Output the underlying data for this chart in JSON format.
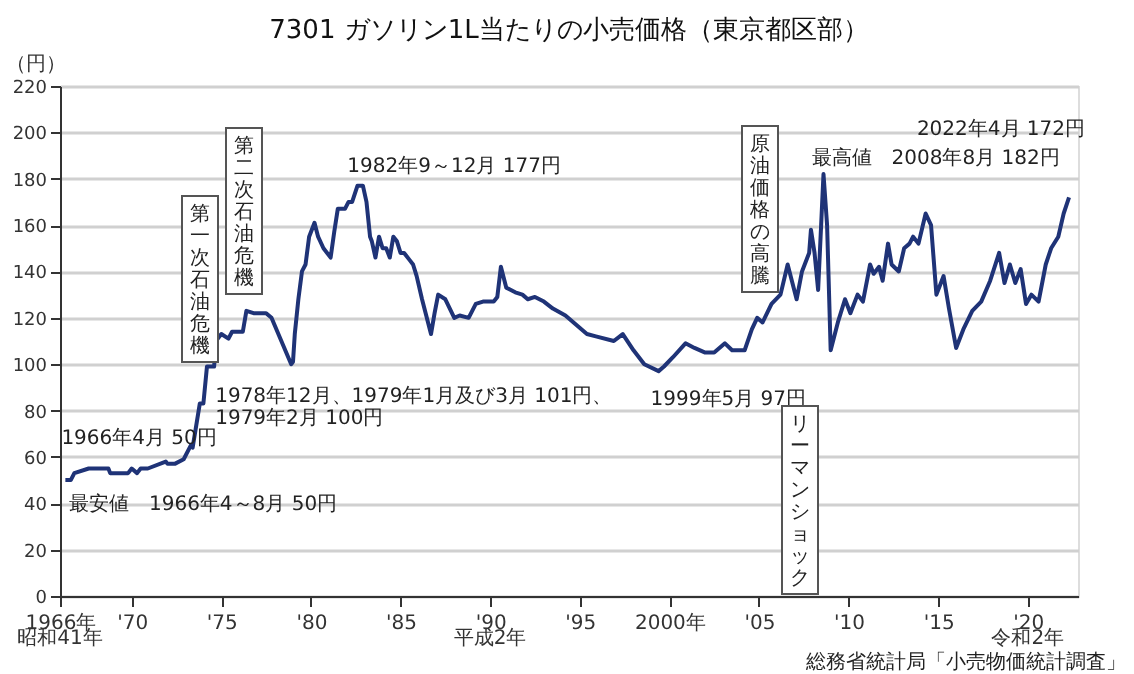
{
  "chart_data": {
    "type": "line",
    "title": "7301 ガソリン1L当たりの小売価格（東京都区部）",
    "ylabel": "（円）",
    "x": [
      1966.3,
      1966.6,
      1966.8,
      1967.6,
      1968.7,
      1968.8,
      1969.8,
      1970.0,
      1970.3,
      1970.5,
      1970.9,
      1971.9,
      1972.0,
      1972.4,
      1972.9,
      1973.3,
      1973.4,
      1973.8,
      1974.0,
      1974.2,
      1974.6,
      1974.7,
      1975.0,
      1975.4,
      1975.6,
      1976.2,
      1976.4,
      1976.8,
      1977.5,
      1977.8,
      1978.9,
      1979.0,
      1979.1,
      1979.3,
      1979.5,
      1979.7,
      1979.9,
      1980.2,
      1980.4,
      1980.7,
      1981.1,
      1981.3,
      1981.5,
      1981.9,
      1982.1,
      1982.3,
      1982.6,
      1982.9,
      1983.1,
      1983.3,
      1983.4,
      1983.6,
      1983.8,
      1984.0,
      1984.2,
      1984.4,
      1984.6,
      1984.8,
      1985.0,
      1985.2,
      1985.5,
      1985.7,
      1985.9,
      1986.2,
      1986.7,
      1986.9,
      1987.1,
      1987.5,
      1988.0,
      1988.3,
      1988.8,
      1989.2,
      1989.6,
      1990.2,
      1990.4,
      1990.6,
      1990.9,
      1991.4,
      1991.8,
      1992.1,
      1992.5,
      1993.0,
      1993.5,
      1994.2,
      1994.8,
      1995.4,
      1995.9,
      1996.9,
      1997.4,
      1998.0,
      1998.6,
      1999.4,
      1999.7,
      2000.2,
      2000.9,
      2001.4,
      2002.0,
      2002.5,
      2003.1,
      2003.5,
      2004.2,
      2004.6,
      2004.9,
      2005.2,
      2005.7,
      2006.2,
      2006.6,
      2007.1,
      2007.4,
      2007.8,
      2007.9,
      2008.1,
      2008.3,
      2008.6,
      2008.8,
      2009.0,
      2009.4,
      2009.8,
      2010.1,
      2010.5,
      2010.8,
      2011.2,
      2011.4,
      2011.7,
      2011.9,
      2012.2,
      2012.4,
      2012.8,
      2013.1,
      2013.4,
      2013.6,
      2013.9,
      2014.3,
      2014.6,
      2014.9,
      2015.3,
      2015.6,
      2016.0,
      2016.4,
      2016.9,
      2017.4,
      2017.9,
      2018.4,
      2018.7,
      2019.0,
      2019.3,
      2019.6,
      2019.9,
      2020.2,
      2020.6,
      2021.0,
      2021.3,
      2021.7,
      2022.0,
      2022.3
    ],
    "series": [
      {
        "color": "#1f3377",
        "values": [
          50,
          50,
          53,
          55,
          55,
          53,
          53,
          55,
          53,
          55,
          55,
          58,
          57,
          57,
          59,
          65,
          64,
          83,
          83,
          99,
          99,
          110,
          113,
          111,
          114,
          114,
          123,
          122,
          122,
          120,
          100,
          101,
          113,
          128,
          140,
          143,
          155,
          161,
          155,
          150,
          146,
          157,
          167,
          167,
          170,
          170,
          177,
          177,
          170,
          155,
          153,
          146,
          155,
          150,
          150,
          146,
          155,
          153,
          148,
          148,
          145,
          143,
          138,
          128,
          113,
          122,
          130,
          128,
          120,
          121,
          120,
          126,
          127,
          127,
          129,
          142,
          133,
          131,
          130,
          128,
          129,
          127,
          124,
          121,
          117,
          113,
          112,
          110,
          113,
          106,
          100,
          97,
          99,
          103,
          109,
          107,
          105,
          105,
          109,
          106,
          106,
          115,
          120,
          118,
          126,
          130,
          143,
          128,
          140,
          148,
          158,
          148,
          132,
          182,
          160,
          106,
          118,
          128,
          122,
          130,
          127,
          143,
          139,
          142,
          136,
          152,
          143,
          140,
          150,
          152,
          155,
          152,
          165,
          160,
          130,
          138,
          124,
          107,
          115,
          123,
          127,
          136,
          148,
          135,
          143,
          135,
          141,
          126,
          130,
          127,
          143,
          150,
          155,
          165,
          172
        ]
      }
    ],
    "xlim": [
      1966,
      2022.8
    ],
    "xticks": [
      {
        "value": 1966,
        "label": "1966年"
      },
      {
        "value": 1970,
        "label": "'70"
      },
      {
        "value": 1975,
        "label": "'75"
      },
      {
        "value": 1980,
        "label": "'80"
      },
      {
        "value": 1985,
        "label": "'85"
      },
      {
        "value": 1990,
        "label": "'90"
      },
      {
        "value": 1995,
        "label": "'95"
      },
      {
        "value": 2000,
        "label": "2000年"
      },
      {
        "value": 2005,
        "label": "'05"
      },
      {
        "value": 2010,
        "label": "'10"
      },
      {
        "value": 2015,
        "label": "'15"
      },
      {
        "value": 2020,
        "label": "'20"
      }
    ],
    "ylim": [
      0,
      220
    ],
    "yticks": [
      0,
      20,
      40,
      60,
      80,
      100,
      120,
      140,
      160,
      180,
      200,
      220
    ],
    "grid": "y",
    "marker": "none",
    "line_style": "solid",
    "annotations": [
      {
        "text": "1966年4月 50円",
        "x": 1966.3,
        "y": 50
      },
      {
        "text": "最安値　1966年4～8月 50円",
        "x": 1966.5,
        "y": 50
      },
      {
        "text": "1978年12月、1979年1月及び3月 101円、\n1979年2月 100円",
        "x": 1978.9,
        "y": 100
      },
      {
        "text": "1982年9～12月 177円",
        "x": 1982.7,
        "y": 177
      },
      {
        "text": "1999年5月 97円",
        "x": 1999.4,
        "y": 97
      },
      {
        "text": "最高値　2008年8月 182円",
        "x": 2008.6,
        "y": 182
      },
      {
        "text": "2022年4月 172円",
        "x": 2022.3,
        "y": 172
      },
      "第一次石油危機",
      "第二次石油危機",
      "原油価格の高騰",
      "リーマンショック",
      "昭和41年",
      "平成2年",
      "令和2年",
      "総務省統計局「小売物価統計調査」"
    ]
  }
}
